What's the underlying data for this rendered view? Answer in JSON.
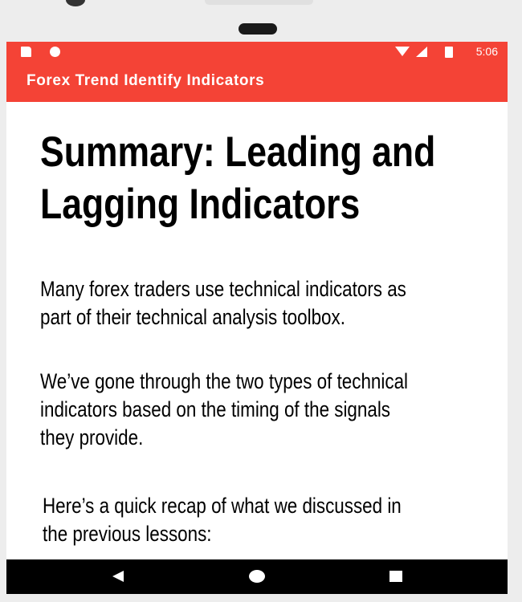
{
  "status_bar": {
    "time": "5:06",
    "icons": [
      "sd-card-icon",
      "record-icon",
      "wifi-icon",
      "signal-icon",
      "battery-icon"
    ]
  },
  "app_bar": {
    "title": "Forex Trend Identify Indicators",
    "color": "#f44336"
  },
  "article": {
    "heading_lines": [
      "Summary: Leading and",
      "Lagging Indicators"
    ],
    "paragraphs": [
      {
        "lines": [
          "Many forex traders use technical indicators as",
          "part of their technical analysis toolbox."
        ]
      },
      {
        "lines": [
          "We’ve gone through the two types of technical",
          "indicators based on the timing of the signals",
          "they provide."
        ]
      },
      {
        "lines": [
          "Here’s a quick recap of what we discussed in",
          "the previous lessons:"
        ]
      }
    ]
  },
  "nav_bar": {
    "icons": [
      "back-icon",
      "home-icon",
      "recents-icon"
    ]
  }
}
